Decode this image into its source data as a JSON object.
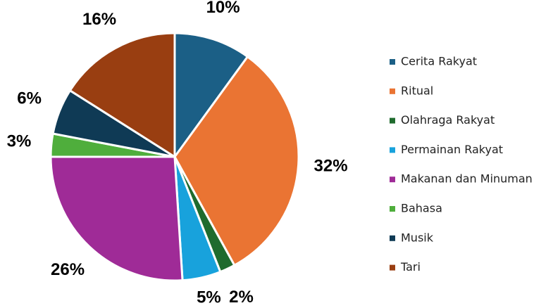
{
  "chart_data": {
    "type": "pie",
    "categories": [
      "Cerita Rakyat",
      "Ritual",
      "Olahraga Rakyat",
      "Permainan Rakyat",
      "Makanan dan Minuman",
      "Bahasa",
      "Musik",
      "Tari"
    ],
    "values": [
      10,
      32,
      2,
      5,
      26,
      3,
      6,
      16
    ],
    "value_labels": [
      "10%",
      "32%",
      "2%",
      "5%",
      "26%",
      "3%",
      "6%",
      "16%"
    ],
    "colors": [
      "#1b5f86",
      "#ea7433",
      "#1f6b2e",
      "#18a2dc",
      "#9f2b97",
      "#4fae3c",
      "#0f3a55",
      "#993e11"
    ],
    "legend": "right"
  }
}
